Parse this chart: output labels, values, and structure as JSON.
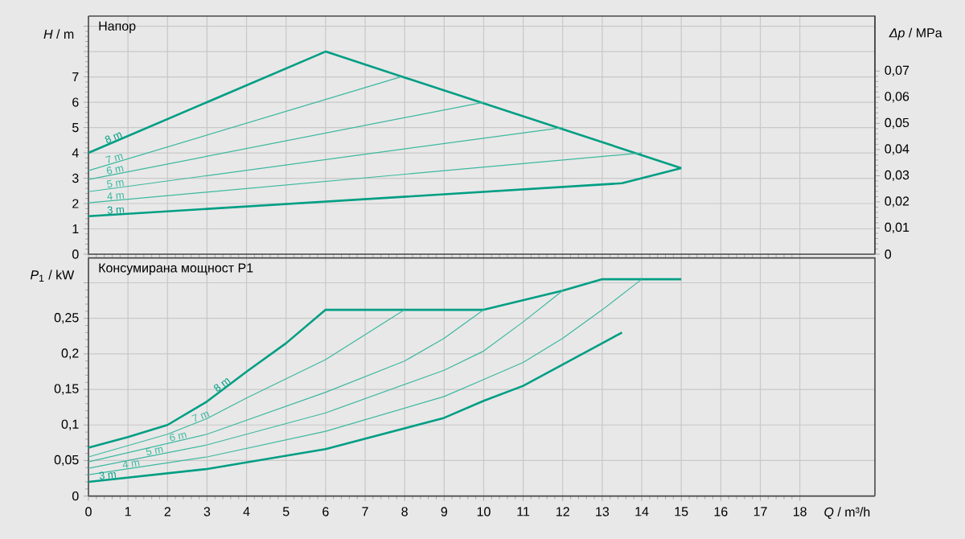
{
  "chart_data": [
    {
      "type": "line",
      "title": "Напор",
      "ylabel": "*H* / m",
      "y2label": "*Δp* / MPa",
      "xlim": [
        0,
        19.9
      ],
      "ylim": [
        0,
        9.4
      ],
      "y2lim": [
        0,
        0.091
      ],
      "xticks": [
        0,
        1,
        2,
        3,
        4,
        5,
        6,
        7,
        8,
        9,
        10,
        11,
        12,
        13,
        14,
        15,
        16,
        17,
        18
      ],
      "yticks": [
        0,
        1,
        2,
        3,
        4,
        5,
        6,
        7,
        {
          "value": 8,
          "label": null
        },
        {
          "value": 9,
          "label": null
        }
      ],
      "y2ticks": [
        0,
        {
          "value": 0.01,
          "label": "0,01"
        },
        {
          "value": 0.02,
          "label": "0,02"
        },
        {
          "value": 0.03,
          "label": "0,03"
        },
        {
          "value": 0.04,
          "label": "0,04"
        },
        {
          "value": 0.05,
          "label": "0,05"
        },
        {
          "value": 0.06,
          "label": "0,06"
        },
        {
          "value": 0.07,
          "label": "0,07"
        }
      ],
      "tick_labels": "y",
      "grid": true,
      "series": [
        {
          "name": "8 m",
          "color": "#009e84",
          "x": [
            0,
            6,
            15
          ],
          "values": [
            4.0,
            8.0,
            3.4
          ]
        },
        {
          "name": "7 m",
          "color": "#3cb89f",
          "x": [
            0,
            7.9
          ],
          "values": [
            3.3,
            7.0
          ]
        },
        {
          "name": "6 m",
          "color": "#3cb89f",
          "x": [
            0,
            10
          ],
          "values": [
            2.95,
            6.0
          ]
        },
        {
          "name": "5 m",
          "color": "#3cb89f",
          "x": [
            0,
            12
          ],
          "values": [
            2.47,
            5.0
          ]
        },
        {
          "name": "4 m",
          "color": "#3cb89f",
          "x": [
            0,
            14
          ],
          "values": [
            2.03,
            4.0
          ]
        },
        {
          "name": "3 m",
          "color": "#009e84",
          "x": [
            0,
            13.5,
            15
          ],
          "values": [
            1.5,
            2.8,
            3.4
          ]
        }
      ]
    },
    {
      "type": "line",
      "title": "Консумирана мощност P1",
      "ylabel": "*P*$_{1}$ / kW",
      "xlabel": "*Q* / m³/h",
      "xlim": [
        0,
        19.9
      ],
      "ylim": [
        0,
        0.335
      ],
      "xticks": [
        0,
        1,
        2,
        3,
        4,
        5,
        6,
        7,
        8,
        9,
        10,
        11,
        12,
        13,
        14,
        15,
        16,
        17,
        18
      ],
      "yticks": [
        0,
        {
          "value": 0.05,
          "label": "0,05"
        },
        {
          "value": 0.1,
          "label": "0,1"
        },
        {
          "value": 0.15,
          "label": "0,15"
        },
        {
          "value": 0.2,
          "label": "0,2"
        },
        {
          "value": 0.25,
          "label": "0,25"
        },
        {
          "value": 0.3,
          "label": null
        }
      ],
      "grid": true,
      "series": [
        {
          "name": "8 m",
          "color": "#009e84",
          "x": [
            0,
            1,
            2,
            3,
            4,
            5,
            6,
            10,
            12,
            13,
            15
          ],
          "values": [
            0.068,
            0.083,
            0.1,
            0.133,
            0.175,
            0.215,
            0.262,
            0.262,
            0.289,
            0.305,
            0.305
          ]
        },
        {
          "name": "7 m",
          "color": "#3cb89f",
          "x": [
            0,
            2,
            3,
            4,
            6,
            8
          ],
          "values": [
            0.055,
            0.087,
            0.109,
            0.138,
            0.192,
            0.262
          ]
        },
        {
          "name": "6 m",
          "color": "#3cb89f",
          "x": [
            0,
            3,
            6,
            8,
            9,
            10
          ],
          "values": [
            0.048,
            0.087,
            0.146,
            0.19,
            0.222,
            0.262
          ]
        },
        {
          "name": "5 m",
          "color": "#3cb89f",
          "x": [
            0,
            3,
            6,
            9,
            10,
            11,
            12
          ],
          "values": [
            0.039,
            0.072,
            0.117,
            0.177,
            0.204,
            0.245,
            0.289
          ]
        },
        {
          "name": "4 m",
          "color": "#3cb89f",
          "x": [
            0,
            3,
            6,
            9,
            10,
            11,
            12,
            13,
            14
          ],
          "values": [
            0.03,
            0.055,
            0.091,
            0.14,
            0.164,
            0.188,
            0.222,
            0.262,
            0.305
          ]
        },
        {
          "name": "3 m",
          "color": "#009e84",
          "x": [
            0,
            3,
            6,
            9,
            10,
            11,
            12,
            13,
            13.5
          ],
          "values": [
            0.02,
            0.038,
            0.066,
            0.11,
            0.134,
            0.155,
            0.185,
            0.215,
            0.23
          ]
        }
      ]
    }
  ]
}
